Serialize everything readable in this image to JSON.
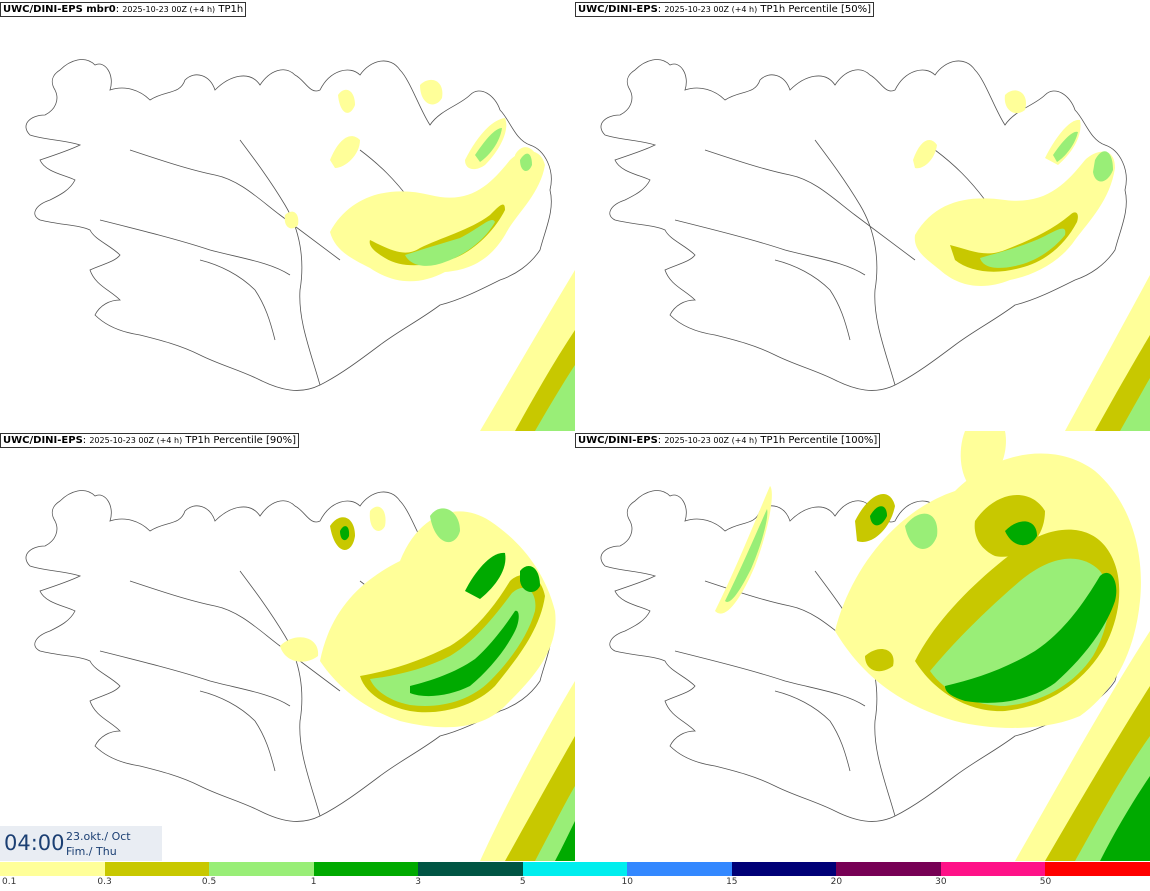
{
  "panels": [
    {
      "model": "UWC/DINI-EPS mbr0",
      "run": "2025-10-23 00Z (+4 h)",
      "field": "TP1h"
    },
    {
      "model": "UWC/DINI-EPS",
      "run": "2025-10-23 00Z (+4 h)",
      "field": "TP1h Percentile [50%]"
    },
    {
      "model": "UWC/DINI-EPS",
      "run": "2025-10-23 00Z (+4 h)",
      "field": "TP1h Percentile [90%]"
    },
    {
      "model": "UWC/DINI-EPS",
      "run": "2025-10-23 00Z (+4 h)",
      "field": "TP1h Percentile [100%]"
    }
  ],
  "timebox": {
    "time": "04:00",
    "date_line1": "23.okt./ Oct",
    "date_line2": "Fim./ Thu"
  },
  "legend": {
    "colors": [
      "#ffff99",
      "#c8c800",
      "#99ee77",
      "#00aa00",
      "#005544",
      "#00eeee",
      "#3388ff",
      "#000077",
      "#770055",
      "#ff1188",
      "#ff0000"
    ],
    "labels": [
      "0.1",
      "0.3",
      "0.5",
      "1",
      "3",
      "5",
      "10",
      "15",
      "20",
      "30",
      "50"
    ]
  }
}
